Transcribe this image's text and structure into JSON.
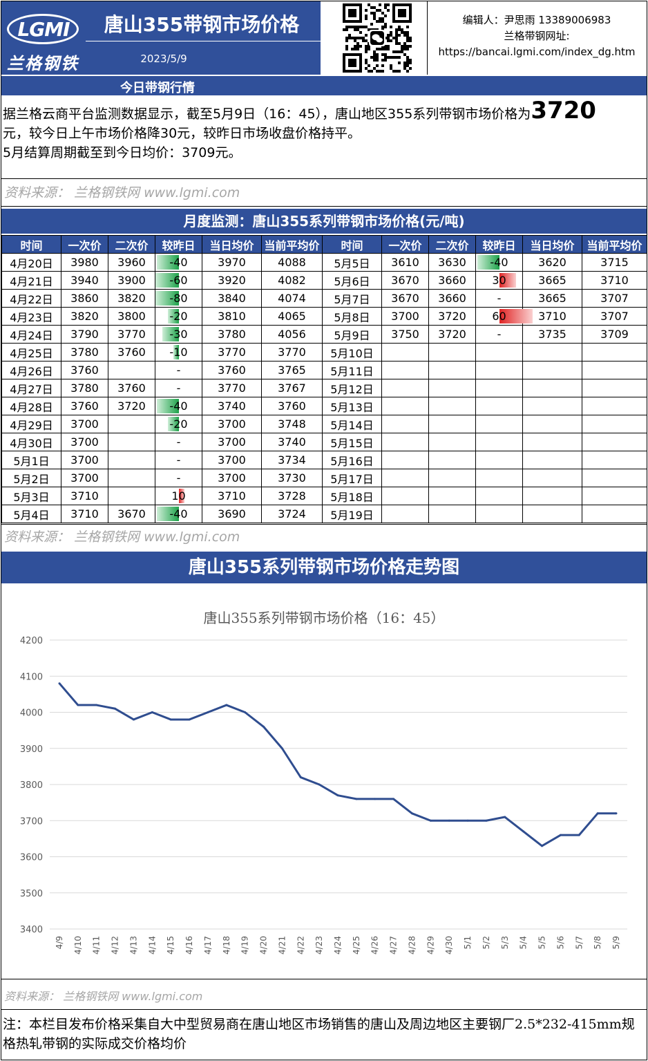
{
  "header": {
    "logo_text": "LGMI",
    "logo_cn": "兰格钢铁",
    "title": "唐山355带钢市场价格",
    "date": "2023/5/9",
    "editor": "编辑人：尹思雨 13389006983",
    "website_label": "兰格带钢网址:",
    "website_url": "https://bancai.lgmi.com/index_dg.htm"
  },
  "today": {
    "section_title": "今日带钢行情",
    "line1_pre": "据兰格云商平台监测数据显示，截至5月9日（16：45），唐山地区355系列带钢市场价格为",
    "price": "3720",
    "line2": "元，较今日上午市场价格降30元，较昨日市场收盘价格持平。",
    "line3": "5月结算周期截至到今日均价：3709元。",
    "source": "资料来源： 兰格钢铁网 www.lgmi.com"
  },
  "monthly": {
    "title": "月度监测：唐山355系列带钢市场价格(元/吨)",
    "headers": [
      "时间",
      "一次价",
      "二次价",
      "较昨日",
      "当日均价",
      "当前平均价",
      "时间",
      "一次价",
      "二次价",
      "较昨日",
      "当日均价",
      "当前平均价"
    ],
    "left_rows": [
      [
        "4月20日",
        "3980",
        "3960",
        "-40",
        "3970",
        "4088"
      ],
      [
        "4月21日",
        "3940",
        "3900",
        "-60",
        "3920",
        "4082"
      ],
      [
        "4月22日",
        "3860",
        "3820",
        "-80",
        "3840",
        "4074"
      ],
      [
        "4月23日",
        "3820",
        "3800",
        "-20",
        "3810",
        "4065"
      ],
      [
        "4月24日",
        "3790",
        "3770",
        "-30",
        "3780",
        "4056"
      ],
      [
        "4月25日",
        "3780",
        "3760",
        "-10",
        "3770",
        "3770"
      ],
      [
        "4月26日",
        "3760",
        "",
        "-",
        "3760",
        "3765"
      ],
      [
        "4月27日",
        "3780",
        "3760",
        "-",
        "3770",
        "3767"
      ],
      [
        "4月28日",
        "3760",
        "3720",
        "-40",
        "3740",
        "3760"
      ],
      [
        "4月29日",
        "3700",
        "",
        "-20",
        "3700",
        "3748"
      ],
      [
        "4月30日",
        "3700",
        "",
        "-",
        "3700",
        "3740"
      ],
      [
        "5月1日",
        "3700",
        "",
        "-",
        "3700",
        "3734"
      ],
      [
        "5月2日",
        "3700",
        "",
        "-",
        "3700",
        "3730"
      ],
      [
        "5月3日",
        "3710",
        "",
        "10",
        "3710",
        "3728"
      ],
      [
        "5月4日",
        "3710",
        "3670",
        "-40",
        "3690",
        "3724"
      ]
    ],
    "right_rows": [
      [
        "5月5日",
        "3610",
        "3630",
        "-40",
        "3620",
        "3715"
      ],
      [
        "5月6日",
        "3670",
        "3660",
        "30",
        "3665",
        "3710"
      ],
      [
        "5月7日",
        "3670",
        "3660",
        "-",
        "3665",
        "3707"
      ],
      [
        "5月8日",
        "3700",
        "3720",
        "60",
        "3710",
        "3707"
      ],
      [
        "5月9日",
        "3750",
        "3720",
        "-",
        "3735",
        "3709"
      ],
      [
        "5月10日",
        "",
        "",
        "",
        "",
        ""
      ],
      [
        "5月11日",
        "",
        "",
        "",
        "",
        ""
      ],
      [
        "5月12日",
        "",
        "",
        "",
        "",
        ""
      ],
      [
        "5月13日",
        "",
        "",
        "",
        "",
        ""
      ],
      [
        "5月14日",
        "",
        "",
        "",
        "",
        ""
      ],
      [
        "5月15日",
        "",
        "",
        "",
        "",
        ""
      ],
      [
        "5月16日",
        "",
        "",
        "",
        "",
        ""
      ],
      [
        "5月17日",
        "",
        "",
        "",
        "",
        ""
      ],
      [
        "5月18日",
        "",
        "",
        "",
        "",
        ""
      ],
      [
        "5月19日",
        "",
        "",
        "",
        "",
        ""
      ]
    ],
    "source": "资料来源： 兰格钢铁网 www.lgmi.com"
  },
  "trend": {
    "section_title": "唐山355系列带钢市场价格走势图",
    "source": "资料来源： 兰格钢铁网 www.lgmi.com"
  },
  "chart_data": {
    "type": "line",
    "title": "唐山355系列带钢市场价格（16：45）",
    "categories": [
      "4/9",
      "4/10",
      "4/11",
      "4/12",
      "4/13",
      "4/14",
      "4/15",
      "4/16",
      "4/17",
      "4/18",
      "4/19",
      "4/20",
      "4/21",
      "4/22",
      "4/23",
      "4/24",
      "4/25",
      "4/26",
      "4/27",
      "4/28",
      "4/29",
      "4/30",
      "5/1",
      "5/2",
      "5/3",
      "5/4",
      "5/5",
      "5/6",
      "5/7",
      "5/8",
      "5/9"
    ],
    "series": [
      {
        "values": [
          4080,
          4020,
          4020,
          4010,
          3980,
          4000,
          3980,
          3980,
          4000,
          4020,
          4000,
          3960,
          3900,
          3820,
          3800,
          3770,
          3760,
          3760,
          3760,
          3720,
          3700,
          3700,
          3700,
          3700,
          3710,
          3670,
          3630,
          3660,
          3660,
          3720,
          3720
        ]
      }
    ],
    "ylim": [
      3400,
      4200
    ],
    "yticks": [
      3400,
      3500,
      3600,
      3700,
      3800,
      3900,
      4000,
      4100,
      4200
    ],
    "xlabel": "",
    "ylabel": "",
    "line_color": "#2f4d8f",
    "grid": true
  },
  "note": "注：本栏目发布价格采集自大中型贸易商在唐山地区市场销售的唐山及周边地区主要钢厂2.5*232-415mm规格热轧带钢的实际成交价格均价",
  "colors": {
    "brand_blue": "#30509a",
    "down_green": "#1ea24a",
    "up_red": "#e02424",
    "source_gray": "#a6a6a6"
  }
}
